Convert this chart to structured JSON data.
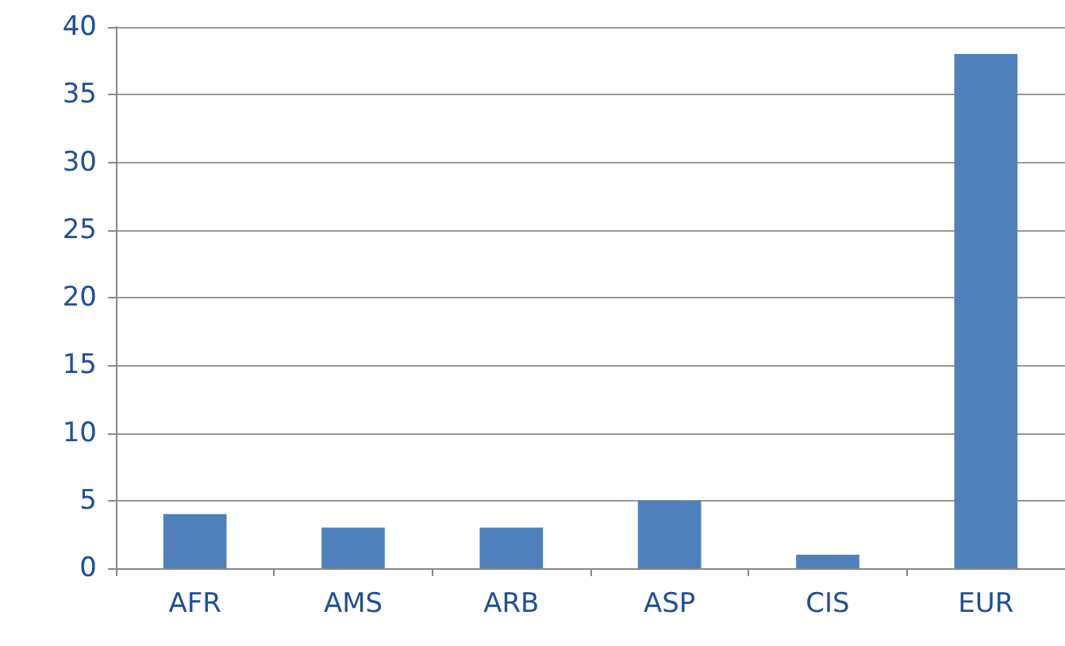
{
  "chart_data": {
    "type": "bar",
    "categories": [
      "AFR",
      "AMS",
      "ARB",
      "ASP",
      "CIS",
      "EUR"
    ],
    "values": [
      4,
      3,
      3,
      5,
      1,
      38
    ],
    "color": "#4f81bd",
    "ylim": [
      0,
      40
    ],
    "yticks": [
      0,
      5,
      10,
      15,
      20,
      25,
      30,
      35,
      40
    ],
    "grid": "y"
  }
}
